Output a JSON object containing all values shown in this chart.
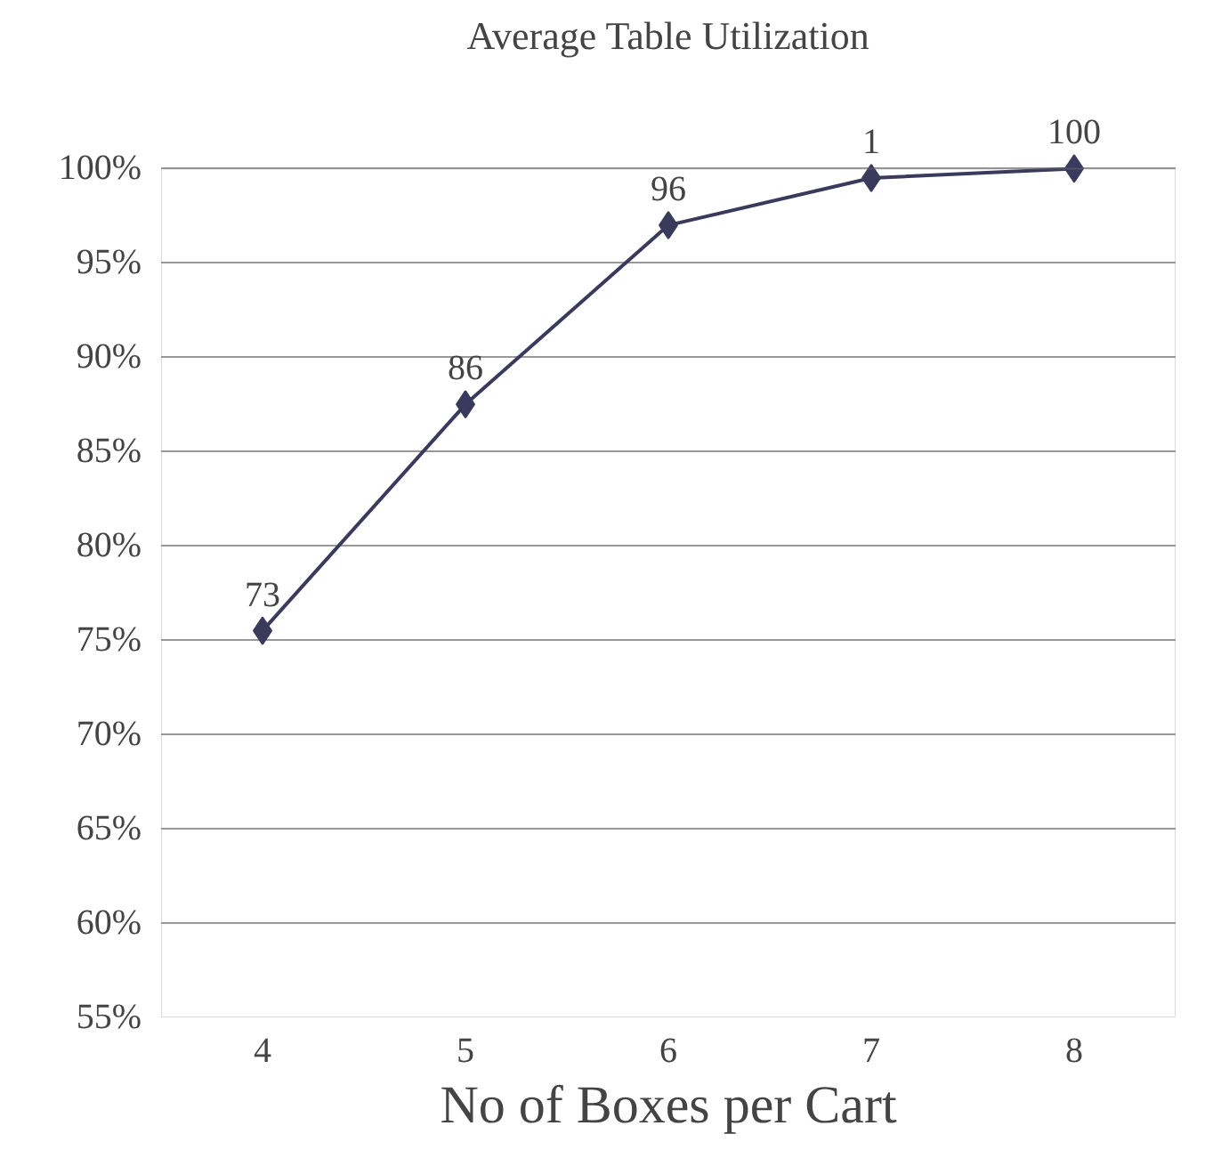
{
  "chart_data": {
    "type": "line",
    "title": "Average Table Utilization",
    "xlabel": "No of Boxes per Cart",
    "categories": [
      "4",
      "5",
      "6",
      "7",
      "8"
    ],
    "series": [
      {
        "color": "#3a3a5c",
        "values": [
          75.5,
          87.5,
          97,
          99.5,
          100
        ]
      }
    ],
    "annotations": [
      {
        "text": "73",
        "x": "4",
        "y": 75.5
      },
      {
        "text": "86",
        "x": "5",
        "y": 87.5
      },
      {
        "text": "96",
        "x": "6",
        "y": 97
      },
      {
        "text": "1",
        "x": "7",
        "y": 99.5
      },
      {
        "text": "100",
        "x": "8",
        "y": 100
      }
    ],
    "ylim": [
      55,
      100
    ],
    "yticks": [
      {
        "value": 55,
        "label": "55%"
      },
      {
        "value": 60,
        "label": "60%"
      },
      {
        "value": 65,
        "label": "65%"
      },
      {
        "value": 70,
        "label": "70%"
      },
      {
        "value": 75,
        "label": "75%"
      },
      {
        "value": 80,
        "label": "80%"
      },
      {
        "value": 85,
        "label": "85%"
      },
      {
        "value": 90,
        "label": "90%"
      },
      {
        "value": 95,
        "label": "95%"
      },
      {
        "value": 100,
        "label": "100%"
      }
    ],
    "grid": "y",
    "marker": "diamond",
    "line_style": "solid"
  }
}
